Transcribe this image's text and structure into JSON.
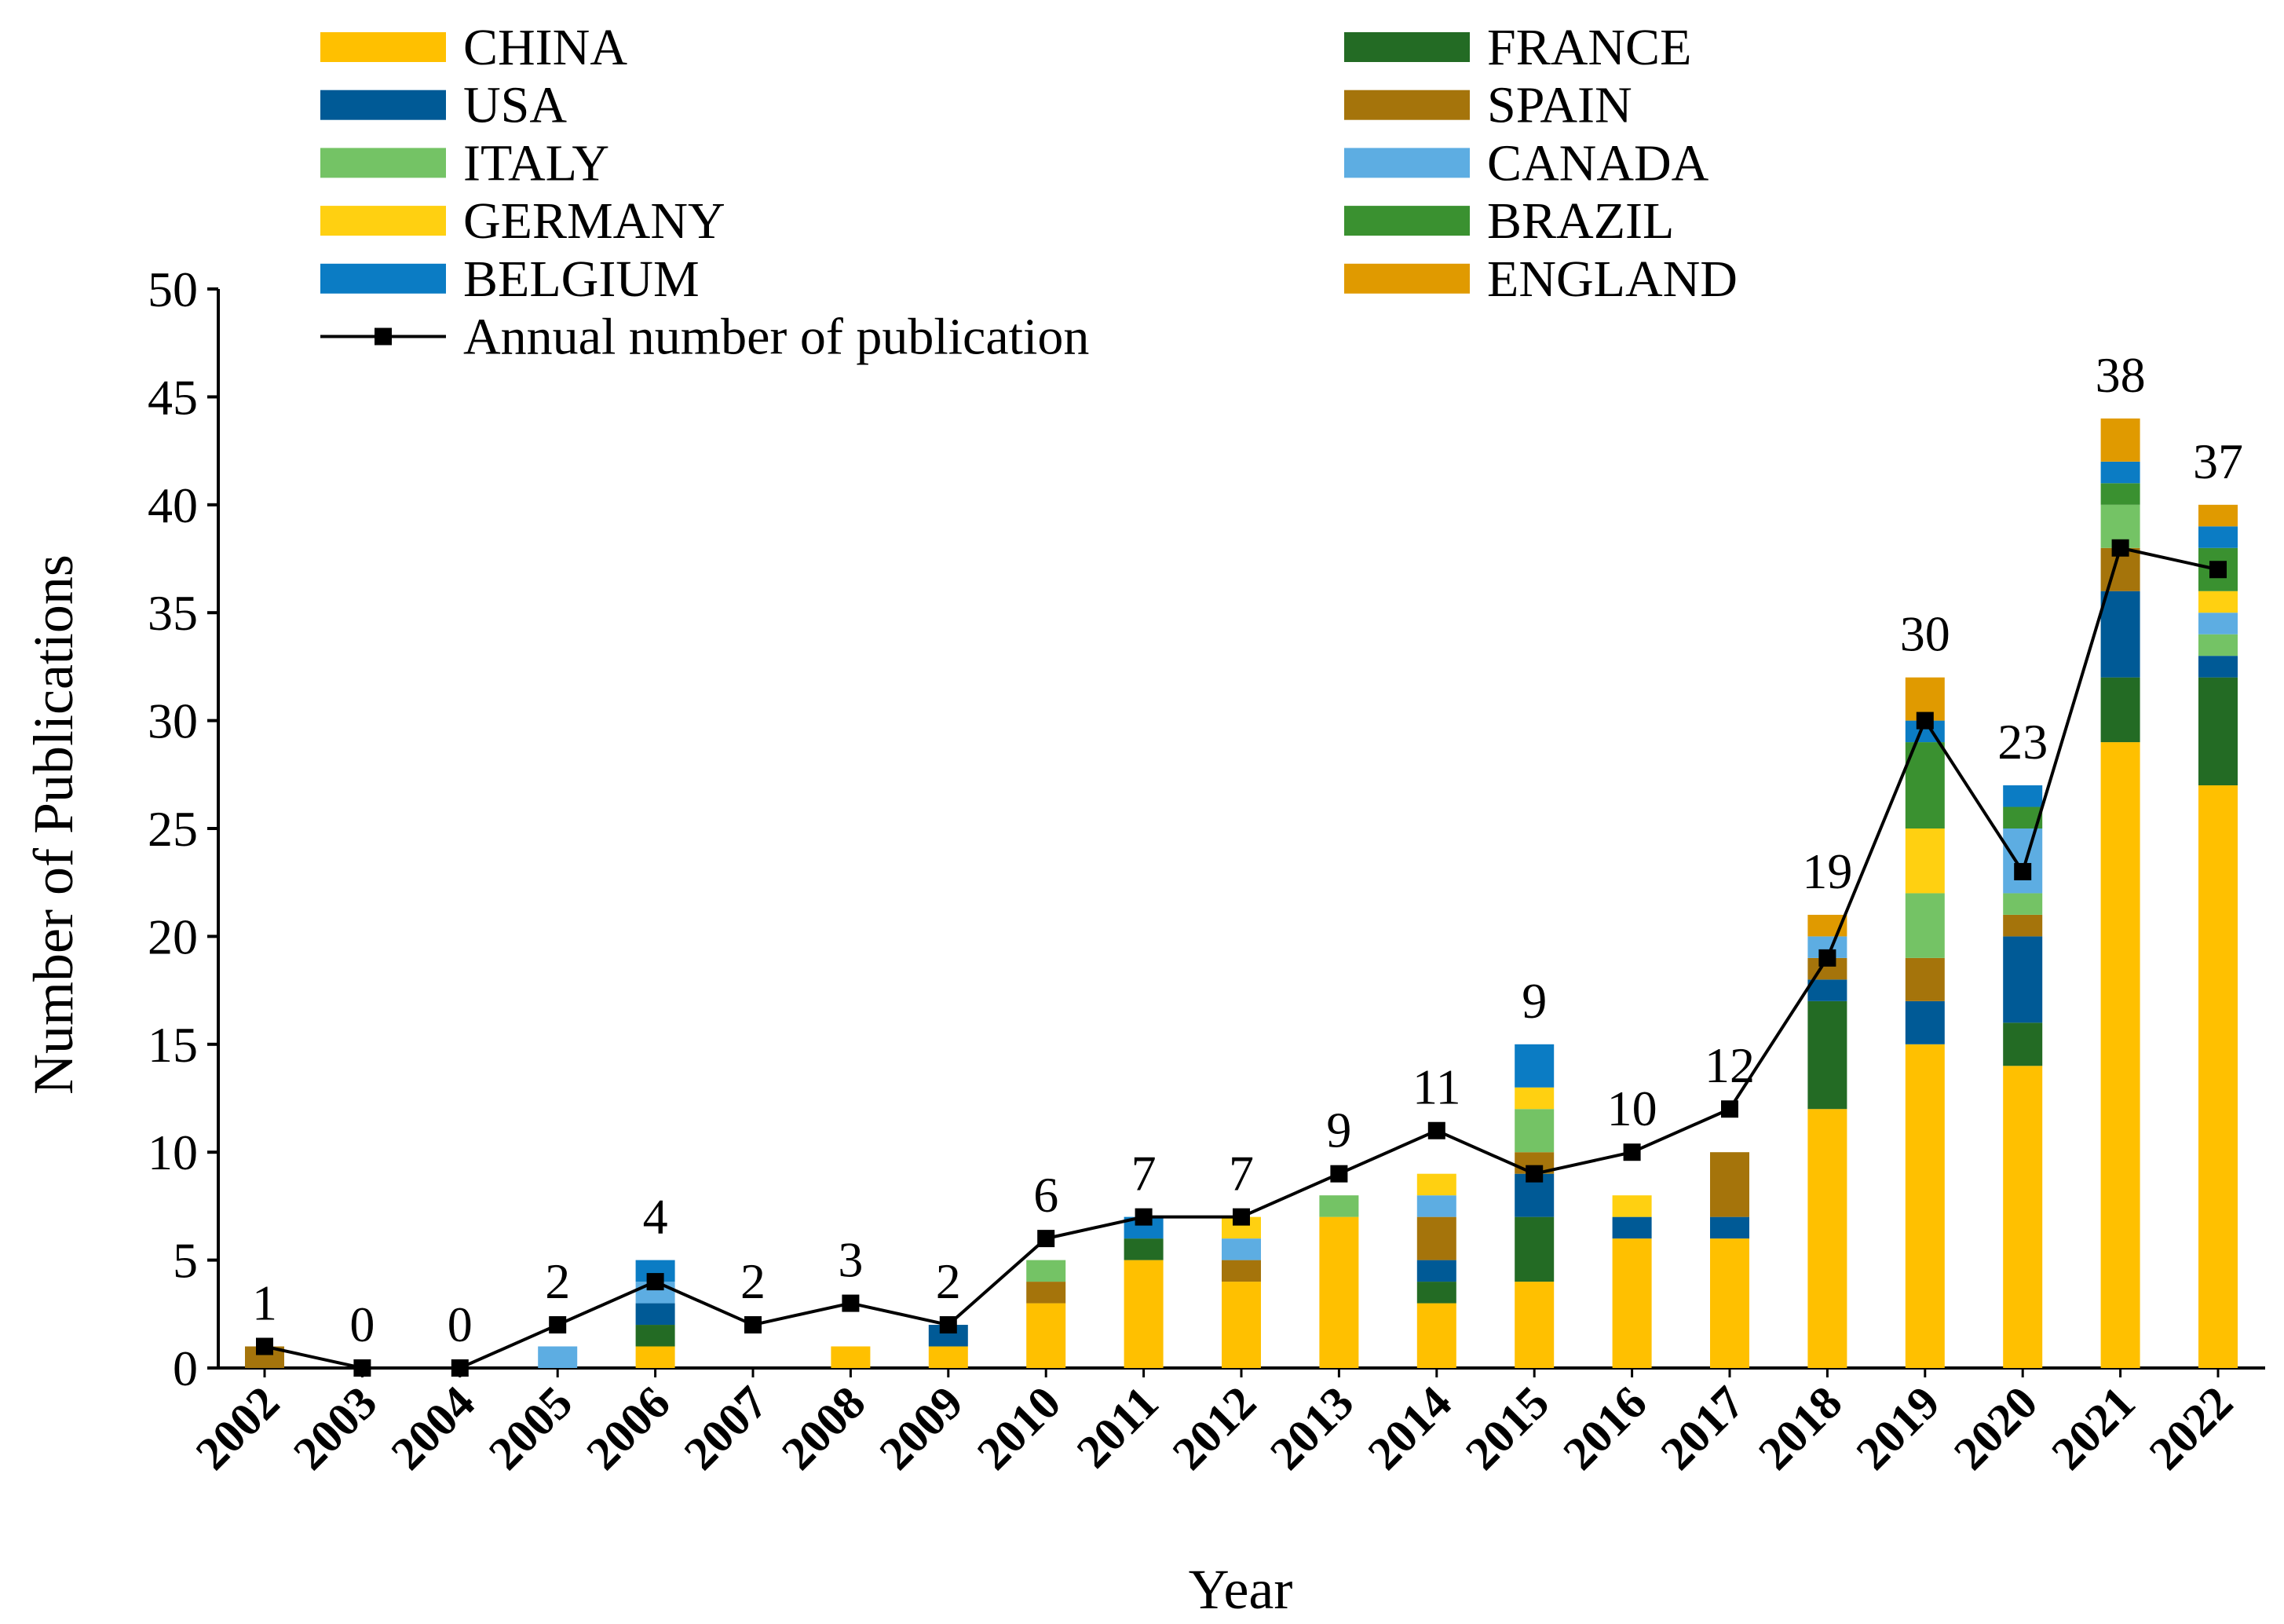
{
  "chart_data": {
    "type": "bar",
    "stacked": true,
    "title": "",
    "xlabel": "Year",
    "ylabel": "Number of Publications",
    "ylim": [
      0,
      50
    ],
    "yticks": [
      0,
      5,
      10,
      15,
      20,
      25,
      30,
      35,
      40,
      45,
      50
    ],
    "categories": [
      "2002",
      "2003",
      "2004",
      "2005",
      "2006",
      "2007",
      "2008",
      "2009",
      "2010",
      "2011",
      "2012",
      "2013",
      "2014",
      "2015",
      "2016",
      "2017",
      "2018",
      "2019",
      "2020",
      "2021",
      "2022"
    ],
    "series": [
      {
        "name": "CHINA",
        "color": "#FFC000",
        "values": [
          0,
          0,
          0,
          0,
          1,
          0,
          1,
          1,
          3,
          5,
          4,
          7,
          3,
          4,
          6,
          6,
          12,
          15,
          14,
          29,
          27
        ]
      },
      {
        "name": "FRANCE",
        "color": "#236B24",
        "values": [
          0,
          0,
          0,
          0,
          1,
          0,
          0,
          0,
          0,
          1,
          0,
          0,
          1,
          3,
          0,
          0,
          5,
          0,
          2,
          3,
          5
        ]
      },
      {
        "name": "USA",
        "color": "#005A96",
        "values": [
          0,
          0,
          0,
          0,
          1,
          0,
          0,
          1,
          0,
          0,
          0,
          0,
          1,
          2,
          1,
          1,
          1,
          2,
          4,
          4,
          1
        ]
      },
      {
        "name": "SPAIN",
        "color": "#A5740B",
        "values": [
          1,
          0,
          0,
          0,
          0,
          0,
          0,
          0,
          1,
          0,
          1,
          0,
          2,
          1,
          0,
          3,
          1,
          2,
          1,
          2,
          0
        ]
      },
      {
        "name": "ITALY",
        "color": "#74C365",
        "values": [
          0,
          0,
          0,
          0,
          0,
          0,
          0,
          0,
          1,
          0,
          0,
          1,
          0,
          2,
          0,
          0,
          0,
          3,
          1,
          2,
          1
        ]
      },
      {
        "name": "CANADA",
        "color": "#5DADE2",
        "values": [
          0,
          0,
          0,
          1,
          1,
          0,
          0,
          0,
          0,
          0,
          1,
          0,
          1,
          0,
          0,
          0,
          1,
          0,
          3,
          0,
          1
        ]
      },
      {
        "name": "GERMANY",
        "color": "#FFD011",
        "values": [
          0,
          0,
          0,
          0,
          0,
          0,
          0,
          0,
          0,
          0,
          1,
          0,
          1,
          1,
          1,
          0,
          0,
          3,
          0,
          0,
          1
        ]
      },
      {
        "name": "BRAZIL",
        "color": "#3A9130",
        "values": [
          0,
          0,
          0,
          0,
          0,
          0,
          0,
          0,
          0,
          0,
          0,
          0,
          0,
          0,
          0,
          0,
          0,
          4,
          1,
          1,
          2
        ]
      },
      {
        "name": "BELGIUM",
        "color": "#0B7CC4",
        "values": [
          0,
          0,
          0,
          0,
          1,
          0,
          0,
          0,
          0,
          1,
          0,
          0,
          0,
          2,
          0,
          0,
          0,
          1,
          1,
          1,
          1
        ]
      },
      {
        "name": "ENGLAND",
        "color": "#E09A00",
        "values": [
          0,
          0,
          0,
          0,
          0,
          0,
          0,
          0,
          0,
          0,
          0,
          0,
          0,
          0,
          0,
          0,
          1,
          2,
          0,
          2,
          1
        ]
      }
    ],
    "line": {
      "name": "Annual number of publication",
      "color": "#000000",
      "values": [
        1,
        0,
        0,
        2,
        4,
        2,
        3,
        2,
        6,
        7,
        7,
        9,
        11,
        9,
        10,
        12,
        19,
        30,
        23,
        38,
        37
      ]
    },
    "legend_position": "top-left",
    "grid": false
  }
}
